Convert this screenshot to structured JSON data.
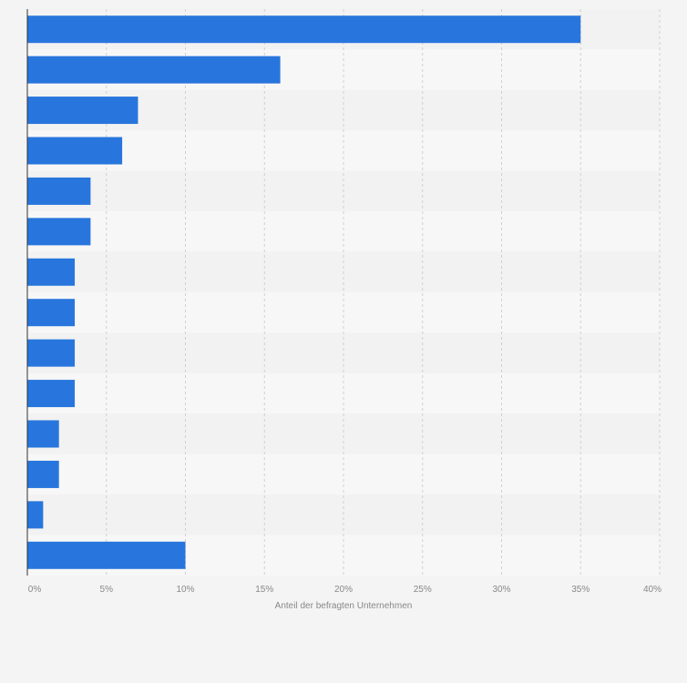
{
  "chart_data": {
    "type": "bar",
    "orientation": "horizontal",
    "categories": [
      "",
      "",
      "",
      "",
      "",
      "",
      "",
      "",
      "",
      "",
      "",
      "",
      "",
      ""
    ],
    "values": [
      35,
      16,
      7,
      6,
      4,
      4,
      3,
      3,
      3,
      3,
      2,
      2,
      1,
      10
    ],
    "xlabel": "Anteil der befragten Unternehmen",
    "xlim": [
      0,
      40
    ],
    "xticks": [
      "0%",
      "5%",
      "10%",
      "15%",
      "20%",
      "25%",
      "30%",
      "35%",
      "40%"
    ],
    "grid": true,
    "legend": "none",
    "colors": {
      "bar": "#2876dd",
      "band_dark": "#f2f2f2",
      "band_light": "#f7f7f7",
      "grid": "#d0d0d0",
      "axis": "#333333"
    }
  }
}
